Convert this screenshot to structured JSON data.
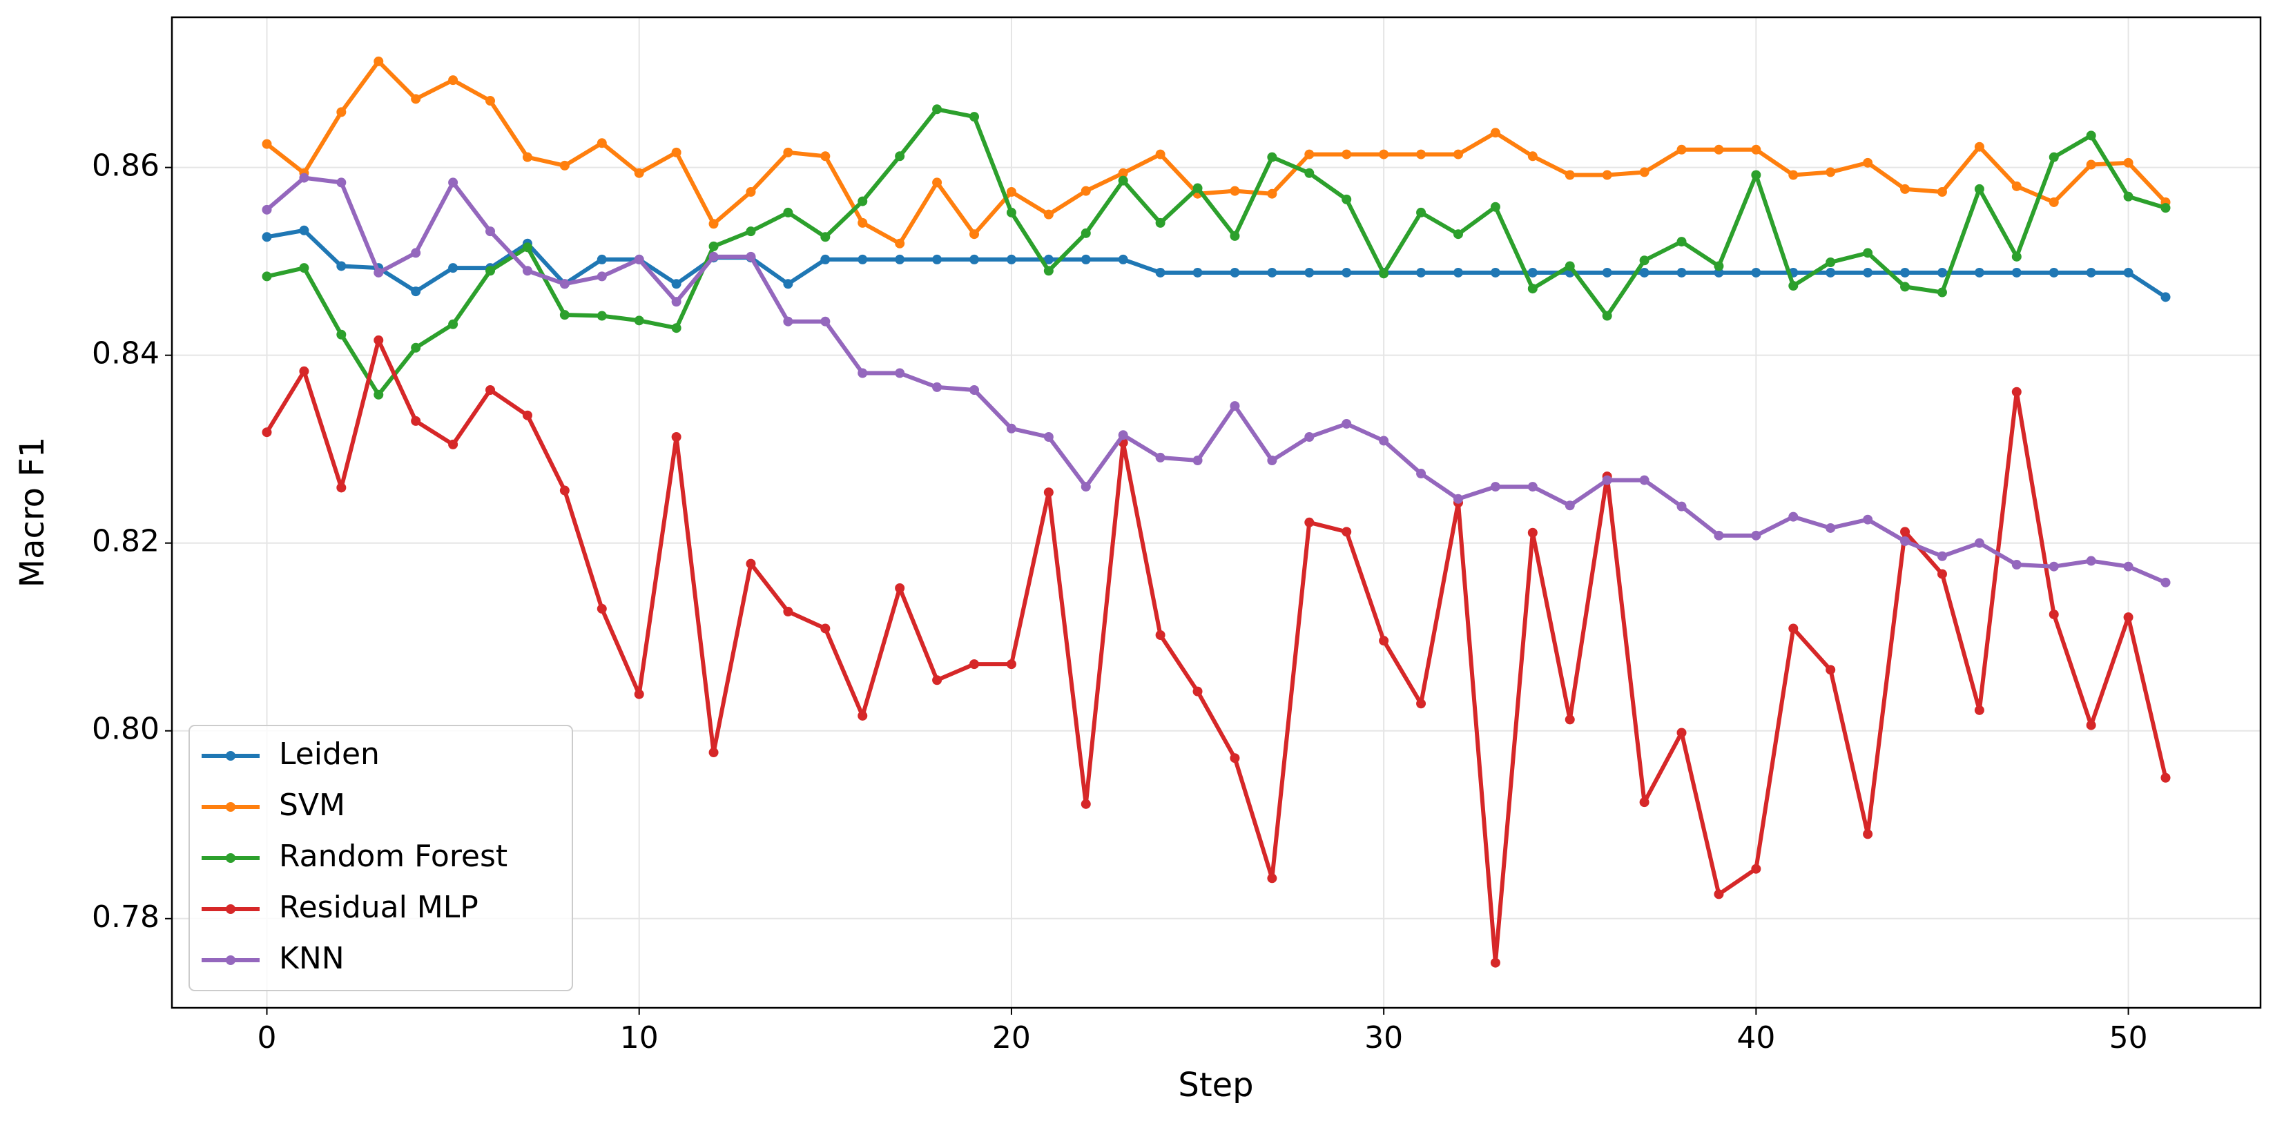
{
  "chart_data": {
    "type": "line",
    "x_label": "Step",
    "y_label": "Macro F1",
    "x": [
      0,
      1,
      2,
      3,
      4,
      5,
      6,
      7,
      8,
      9,
      10,
      11,
      12,
      13,
      14,
      15,
      16,
      17,
      18,
      19,
      20,
      21,
      22,
      23,
      24,
      25,
      26,
      27,
      28,
      29,
      30,
      31,
      32,
      33,
      34,
      35,
      36,
      37,
      38,
      39,
      40,
      41,
      42,
      43,
      44,
      45,
      46,
      47,
      48,
      49,
      50,
      51
    ],
    "series": [
      {
        "name": "Leiden",
        "color": "#1f77b4",
        "values": [
          0.8526,
          0.8533,
          0.8495,
          0.8493,
          0.8468,
          0.8493,
          0.8493,
          0.8519,
          0.8476,
          0.8502,
          0.8502,
          0.8476,
          0.8504,
          0.8504,
          0.8476,
          0.8502,
          0.8502,
          0.8502,
          0.8502,
          0.8502,
          0.8502,
          0.8502,
          0.8502,
          0.8502,
          0.8488,
          0.8488,
          0.8488,
          0.8488,
          0.8488,
          0.8488,
          0.8488,
          0.8488,
          0.8488,
          0.8488,
          0.8488,
          0.8488,
          0.8488,
          0.8488,
          0.8488,
          0.8488,
          0.8488,
          0.8488,
          0.8488,
          0.8488,
          0.8488,
          0.8488,
          0.8488,
          0.8488,
          0.8488,
          0.8488,
          0.8488,
          0.8462
        ]
      },
      {
        "name": "SVM",
        "color": "#ff7f0e",
        "values": [
          0.8625,
          0.8594,
          0.8659,
          0.8713,
          0.8673,
          0.8693,
          0.8671,
          0.8611,
          0.8602,
          0.8626,
          0.8594,
          0.8616,
          0.854,
          0.8574,
          0.8616,
          0.8612,
          0.8541,
          0.8519,
          0.8584,
          0.8529,
          0.8574,
          0.855,
          0.8575,
          0.8594,
          0.8614,
          0.8572,
          0.8575,
          0.8572,
          0.8614,
          0.8614,
          0.8614,
          0.8614,
          0.8614,
          0.8637,
          0.8612,
          0.8592,
          0.8592,
          0.8595,
          0.8619,
          0.8619,
          0.8619,
          0.8592,
          0.8595,
          0.8605,
          0.8577,
          0.8574,
          0.8622,
          0.858,
          0.8563,
          0.8603,
          0.8605,
          0.8563
        ]
      },
      {
        "name": "Random Forest",
        "color": "#2ca02c",
        "values": [
          0.8484,
          0.8493,
          0.8422,
          0.8358,
          0.8408,
          0.8433,
          0.849,
          0.8515,
          0.8443,
          0.8442,
          0.8437,
          0.8429,
          0.8516,
          0.8532,
          0.8552,
          0.8526,
          0.8564,
          0.8612,
          0.8662,
          0.8654,
          0.8552,
          0.849,
          0.853,
          0.8586,
          0.8541,
          0.8578,
          0.8527,
          0.8611,
          0.8594,
          0.8566,
          0.8487,
          0.8552,
          0.8529,
          0.8558,
          0.8471,
          0.8495,
          0.8442,
          0.8501,
          0.8521,
          0.8495,
          0.8592,
          0.8474,
          0.8499,
          0.8509,
          0.8473,
          0.8467,
          0.8577,
          0.8505,
          0.8611,
          0.8634,
          0.8569,
          0.8557
        ]
      },
      {
        "name": "Residual MLP",
        "color": "#d62728",
        "values": [
          0.8318,
          0.8383,
          0.8259,
          0.8416,
          0.833,
          0.8305,
          0.8363,
          0.8336,
          0.8256,
          0.813,
          0.8039,
          0.8313,
          0.7977,
          0.8178,
          0.8127,
          0.8109,
          0.8016,
          0.8152,
          0.8054,
          0.8071,
          0.8071,
          0.8254,
          0.7922,
          0.8307,
          0.8102,
          0.8042,
          0.7971,
          0.7843,
          0.8222,
          0.8212,
          0.8096,
          0.8029,
          0.8243,
          0.7753,
          0.8211,
          0.8012,
          0.8271,
          0.7924,
          0.7998,
          0.7826,
          0.7853,
          0.8109,
          0.8065,
          0.789,
          0.8212,
          0.8167,
          0.8022,
          0.8361,
          0.8124,
          0.8006,
          0.8121,
          0.795
        ]
      },
      {
        "name": "KNN",
        "color": "#9467bd",
        "values": [
          0.8555,
          0.8589,
          0.8584,
          0.8488,
          0.8509,
          0.8584,
          0.8532,
          0.849,
          0.8476,
          0.8484,
          0.8502,
          0.8457,
          0.8505,
          0.8505,
          0.8436,
          0.8436,
          0.8381,
          0.8381,
          0.8366,
          0.8363,
          0.8322,
          0.8313,
          0.826,
          0.8315,
          0.8291,
          0.8288,
          0.8346,
          0.8288,
          0.8313,
          0.8327,
          0.8309,
          0.8274,
          0.8247,
          0.826,
          0.826,
          0.824,
          0.8267,
          0.8267,
          0.8239,
          0.8208,
          0.8208,
          0.8228,
          0.8216,
          0.8225,
          0.8202,
          0.8186,
          0.82,
          0.8177,
          0.8175,
          0.8181,
          0.8175,
          0.8158
        ]
      }
    ],
    "xlim": [
      -2.55,
      53.55
    ],
    "ylim": [
      0.7705,
      0.876
    ],
    "xticks": [
      0,
      10,
      20,
      30,
      40,
      50
    ],
    "yticks": [
      0.78,
      {
        "value": 0.8,
        "label": "0.80"
      },
      0.82,
      0.84,
      0.86
    ],
    "grid": true,
    "legend": "lower left"
  }
}
